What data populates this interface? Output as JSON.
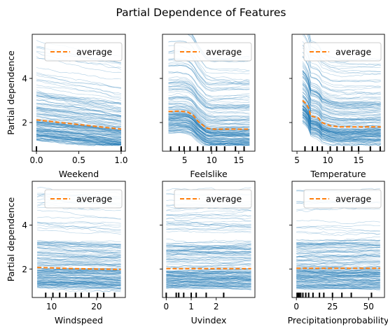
{
  "chart_data": {
    "type": "line",
    "title": "Partial Dependence of Features",
    "ylabel": "Partial dependence",
    "legend_label": "average",
    "ice_color": "#1f77b4",
    "average_color": "#ff7f0e",
    "ylim": [
      0.7,
      6.0
    ],
    "yticks": [
      2,
      4
    ],
    "legend_position": "upper-right",
    "panels": [
      {
        "xlabel": "Weekend",
        "xlim": [
          -0.05,
          1.05
        ],
        "xticks": [
          0.0,
          0.5,
          1.0
        ],
        "xtick_labels": [
          "0.0",
          "0.5",
          "1.0"
        ],
        "rug": [
          0.0,
          1.0
        ],
        "average": {
          "x": [
            0.0,
            1.0
          ],
          "y": [
            2.12,
            1.7
          ]
        }
      },
      {
        "xlabel": "Feelslike",
        "xlim": [
          0.9,
          18.0
        ],
        "xticks": [
          5,
          10,
          15
        ],
        "xtick_labels": [
          "5",
          "10",
          "15"
        ],
        "rug": [
          2.4,
          4.0,
          4.9,
          6.0,
          7.4,
          8.4,
          9.9,
          10.9,
          12.4,
          14.4,
          16.0
        ],
        "average": {
          "x": [
            2.0,
            4.0,
            5.5,
            6.5,
            7.0,
            7.5,
            8.0,
            8.5,
            9.0,
            10.0,
            12.0,
            14.0,
            17.0
          ],
          "y": [
            2.5,
            2.52,
            2.48,
            2.35,
            2.2,
            2.05,
            1.95,
            1.85,
            1.75,
            1.7,
            1.7,
            1.7,
            1.7
          ]
        }
      },
      {
        "xlabel": "Temperature",
        "xlim": [
          4.2,
          19.2
        ],
        "xticks": [
          5,
          10,
          15
        ],
        "xtick_labels": [
          "5",
          "10",
          "15"
        ],
        "rug": [
          6.3,
          7.5,
          8.3,
          9.1,
          10.4,
          11.5,
          12.6,
          13.9,
          15.0,
          16.9,
          18.5
        ],
        "average": {
          "x": [
            5.9,
            6.5,
            7.0,
            7.2,
            8.0,
            8.5,
            9.0,
            10.0,
            10.5,
            12.0,
            15.0,
            18.6
          ],
          "y": [
            3.0,
            2.85,
            2.6,
            2.3,
            2.25,
            2.2,
            2.0,
            1.9,
            1.85,
            1.8,
            1.8,
            1.8
          ]
        }
      },
      {
        "xlabel": "Windspeed",
        "xlim": [
          5.7,
          26.4
        ],
        "xticks": [
          10,
          20
        ],
        "xtick_labels": [
          "10",
          "20"
        ],
        "rug": [
          8.7,
          10.3,
          11.8,
          13.2,
          15.3,
          16.6,
          18.3,
          20.2,
          21.6,
          24.0
        ],
        "average": {
          "x": [
            6.8,
            15.0,
            25.4
          ],
          "y": [
            2.07,
            2.02,
            1.98
          ]
        }
      },
      {
        "xlabel": "Uvindex",
        "xlim": [
          -0.15,
          3.55
        ],
        "xticks": [
          0,
          1,
          2
        ],
        "xtick_labels": [
          "0",
          "1",
          "2"
        ],
        "rug": [
          0.0,
          0.4,
          0.5,
          0.7,
          1.0,
          1.2,
          1.6,
          2.3
        ],
        "average": {
          "x": [
            0.0,
            3.4
          ],
          "y": [
            2.02,
            2.02
          ]
        }
      },
      {
        "xlabel": "Precipitationprobability",
        "xlim": [
          -3,
          61
        ],
        "xticks": [
          0,
          25,
          50
        ],
        "xtick_labels": [
          "0",
          "25",
          "50"
        ],
        "rug": [
          0.5,
          1.3,
          2.0,
          3.0,
          4.5,
          6.5,
          8.5,
          11.5,
          16.0,
          19.0,
          25.0,
          31.5,
          38.0,
          52.0
        ],
        "average": {
          "x": [
            0.0,
            58.0
          ],
          "y": [
            2.03,
            2.03
          ]
        }
      }
    ]
  }
}
